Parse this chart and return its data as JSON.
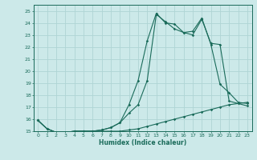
{
  "xlabel": "Humidex (Indice chaleur)",
  "x_ticks": [
    0,
    1,
    2,
    3,
    4,
    5,
    6,
    7,
    8,
    9,
    10,
    11,
    12,
    13,
    14,
    15,
    16,
    17,
    18,
    19,
    20,
    21,
    22,
    23
  ],
  "ylim": [
    15,
    25.5
  ],
  "xlim": [
    -0.5,
    23.5
  ],
  "y_ticks": [
    15,
    16,
    17,
    18,
    19,
    20,
    21,
    22,
    23,
    24,
    25
  ],
  "bg_color": "#cce9e9",
  "grid_color": "#afd4d4",
  "line_color": "#1a6b5a",
  "line1_y": [
    15.9,
    15.2,
    14.9,
    14.9,
    15.0,
    15.0,
    15.0,
    15.0,
    15.0,
    15.0,
    15.1,
    15.2,
    15.4,
    15.6,
    15.8,
    16.0,
    16.2,
    16.4,
    16.6,
    16.8,
    17.0,
    17.2,
    17.3,
    17.4
  ],
  "line2_y": [
    15.9,
    15.2,
    14.9,
    14.9,
    15.0,
    15.0,
    15.0,
    15.1,
    15.3,
    15.7,
    17.2,
    19.2,
    22.5,
    24.8,
    24.0,
    23.9,
    23.2,
    23.3,
    24.4,
    22.2,
    18.9,
    18.2,
    17.4,
    17.3
  ],
  "line3_y": [
    15.9,
    15.2,
    14.9,
    14.9,
    15.0,
    15.0,
    15.0,
    15.1,
    15.3,
    15.7,
    16.5,
    17.2,
    19.2,
    24.7,
    24.1,
    23.5,
    23.2,
    23.0,
    24.3,
    22.3,
    22.2,
    17.5,
    17.3,
    17.1
  ]
}
